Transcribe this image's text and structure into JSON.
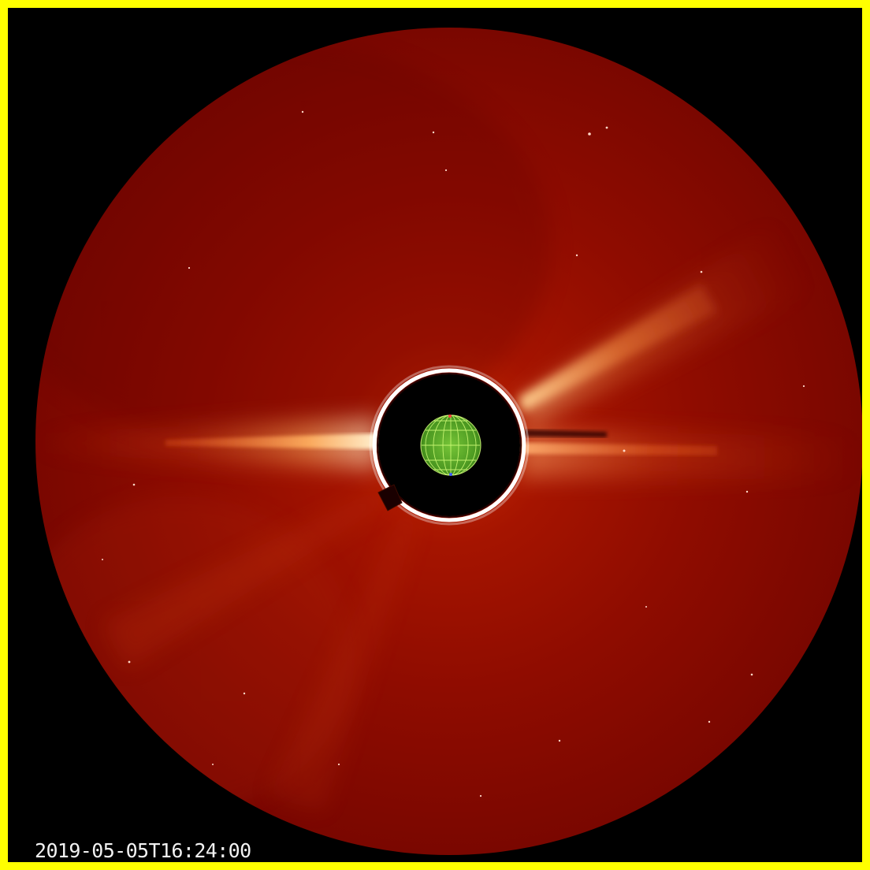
{
  "image": {
    "timestamp": "2019-05-05T16:24:00"
  },
  "colors": {
    "frame_border": "#ffff00",
    "background": "#000000",
    "corona_dark": "#6b0000",
    "corona_mid": "#a81200",
    "corona_bright": "#ff9a3c",
    "streamer_core": "#ffe9c0",
    "sun_overlay": "#5cbf2a",
    "sun_grid": "#d4ff7a",
    "timestamp_text": "#f2f2f2"
  }
}
